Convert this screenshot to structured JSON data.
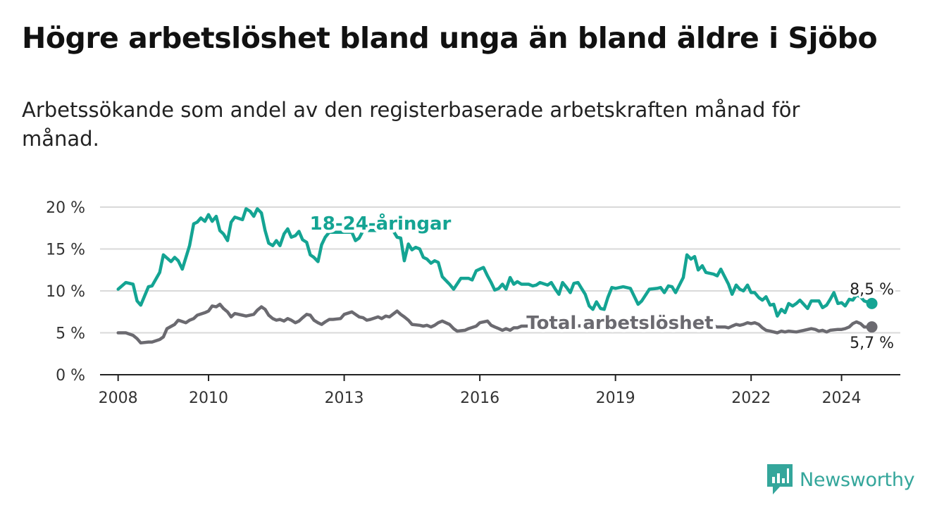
{
  "title": "Högre arbetslöshet bland unga än bland äldre i Sjöbo",
  "subtitle": "Arbetssökande som andel av den registerbaserade arbetskraften månad för månad.",
  "brand": {
    "name": "Newsworthy",
    "icon": "bar-chart-speech-icon",
    "color": "#34a69b"
  },
  "chart_data": {
    "type": "line",
    "ylim": [
      0,
      20
    ],
    "xlim": [
      2007.6,
      2025.3
    ],
    "y_ticks": [
      0,
      5,
      10,
      15,
      20
    ],
    "y_tick_labels": [
      "0 %",
      "5 %",
      "10 %",
      "15 %",
      "20 %"
    ],
    "x_ticks": [
      2008,
      2010,
      2013,
      2016,
      2019,
      2022,
      2024
    ],
    "x_tick_labels": [
      "2008",
      "2010",
      "2013",
      "2016",
      "2019",
      "2022",
      "2024"
    ],
    "grid": true,
    "series": [
      {
        "name": "18-24-åringar",
        "color": "#14a493",
        "end_label": "8,5 %",
        "points": [
          [
            2008.0,
            10.2
          ],
          [
            2008.17,
            11.0
          ],
          [
            2008.33,
            10.8
          ],
          [
            2008.42,
            8.8
          ],
          [
            2008.5,
            8.3
          ],
          [
            2008.67,
            10.5
          ],
          [
            2008.75,
            10.6
          ],
          [
            2008.92,
            12.2
          ],
          [
            2009.0,
            14.3
          ],
          [
            2009.17,
            13.5
          ],
          [
            2009.25,
            14.0
          ],
          [
            2009.33,
            13.6
          ],
          [
            2009.42,
            12.6
          ],
          [
            2009.58,
            15.4
          ],
          [
            2009.67,
            18.0
          ],
          [
            2009.75,
            18.2
          ],
          [
            2009.83,
            18.7
          ],
          [
            2009.92,
            18.3
          ],
          [
            2010.0,
            19.1
          ],
          [
            2010.08,
            18.3
          ],
          [
            2010.17,
            18.9
          ],
          [
            2010.25,
            17.2
          ],
          [
            2010.33,
            16.8
          ],
          [
            2010.42,
            16.0
          ],
          [
            2010.5,
            18.2
          ],
          [
            2010.58,
            18.8
          ],
          [
            2010.75,
            18.5
          ],
          [
            2010.83,
            19.8
          ],
          [
            2010.92,
            19.5
          ],
          [
            2011.0,
            18.9
          ],
          [
            2011.08,
            19.8
          ],
          [
            2011.17,
            19.3
          ],
          [
            2011.25,
            17.2
          ],
          [
            2011.33,
            15.7
          ],
          [
            2011.42,
            15.4
          ],
          [
            2011.5,
            16.0
          ],
          [
            2011.58,
            15.4
          ],
          [
            2011.67,
            16.8
          ],
          [
            2011.75,
            17.4
          ],
          [
            2011.83,
            16.4
          ],
          [
            2011.92,
            16.6
          ],
          [
            2012.0,
            17.1
          ],
          [
            2012.08,
            16.1
          ],
          [
            2012.17,
            15.8
          ],
          [
            2012.25,
            14.3
          ],
          [
            2012.33,
            14.0
          ],
          [
            2012.42,
            13.5
          ],
          [
            2012.5,
            15.5
          ],
          [
            2012.58,
            16.4
          ],
          [
            2012.67,
            17.0
          ],
          [
            2013.17,
            17.0
          ],
          [
            2013.25,
            16.0
          ],
          [
            2013.33,
            16.3
          ],
          [
            2013.42,
            17.2
          ],
          [
            2014.08,
            17.2
          ],
          [
            2014.17,
            16.4
          ],
          [
            2014.25,
            16.3
          ],
          [
            2014.33,
            13.6
          ],
          [
            2014.42,
            15.6
          ],
          [
            2014.5,
            14.9
          ],
          [
            2014.58,
            15.2
          ],
          [
            2014.67,
            15.0
          ],
          [
            2014.75,
            14.0
          ],
          [
            2014.83,
            13.8
          ],
          [
            2014.92,
            13.3
          ],
          [
            2015.0,
            13.6
          ],
          [
            2015.08,
            13.4
          ],
          [
            2015.17,
            11.7
          ],
          [
            2015.33,
            10.8
          ],
          [
            2015.42,
            10.2
          ],
          [
            2015.58,
            11.5
          ],
          [
            2015.75,
            11.5
          ],
          [
            2015.83,
            11.3
          ],
          [
            2015.92,
            12.4
          ],
          [
            2016.0,
            12.6
          ],
          [
            2016.08,
            12.8
          ],
          [
            2016.17,
            11.8
          ],
          [
            2016.25,
            11.0
          ],
          [
            2016.33,
            10.1
          ],
          [
            2016.42,
            10.3
          ],
          [
            2016.5,
            10.8
          ],
          [
            2016.58,
            10.2
          ],
          [
            2016.67,
            11.6
          ],
          [
            2016.75,
            10.8
          ],
          [
            2016.83,
            11.1
          ],
          [
            2016.92,
            10.8
          ],
          [
            2017.08,
            10.8
          ],
          [
            2017.17,
            10.6
          ],
          [
            2017.25,
            10.7
          ],
          [
            2017.33,
            11.0
          ],
          [
            2017.5,
            10.7
          ],
          [
            2017.58,
            11.0
          ],
          [
            2017.67,
            10.2
          ],
          [
            2017.75,
            9.6
          ],
          [
            2017.83,
            11.0
          ],
          [
            2017.92,
            10.4
          ],
          [
            2018.0,
            9.8
          ],
          [
            2018.08,
            10.9
          ],
          [
            2018.17,
            11.0
          ],
          [
            2018.25,
            10.3
          ],
          [
            2018.33,
            9.6
          ],
          [
            2018.42,
            8.2
          ],
          [
            2018.5,
            7.8
          ],
          [
            2018.58,
            8.7
          ],
          [
            2018.67,
            7.9
          ],
          [
            2018.75,
            7.8
          ],
          [
            2018.83,
            9.2
          ],
          [
            2018.92,
            10.4
          ],
          [
            2019.0,
            10.3
          ],
          [
            2019.17,
            10.5
          ],
          [
            2019.33,
            10.3
          ],
          [
            2019.42,
            9.3
          ],
          [
            2019.5,
            8.4
          ],
          [
            2019.58,
            8.8
          ],
          [
            2019.75,
            10.2
          ],
          [
            2019.92,
            10.3
          ],
          [
            2020.0,
            10.4
          ],
          [
            2020.08,
            9.8
          ],
          [
            2020.17,
            10.6
          ],
          [
            2020.25,
            10.5
          ],
          [
            2020.33,
            9.8
          ],
          [
            2020.5,
            11.6
          ],
          [
            2020.58,
            14.3
          ],
          [
            2020.67,
            13.8
          ],
          [
            2020.75,
            14.1
          ],
          [
            2020.83,
            12.5
          ],
          [
            2020.92,
            13.0
          ],
          [
            2021.0,
            12.2
          ],
          [
            2021.17,
            12.0
          ],
          [
            2021.25,
            11.8
          ],
          [
            2021.33,
            12.6
          ],
          [
            2021.5,
            10.8
          ],
          [
            2021.58,
            9.6
          ],
          [
            2021.67,
            10.7
          ],
          [
            2021.75,
            10.2
          ],
          [
            2021.83,
            10.0
          ],
          [
            2021.92,
            10.7
          ],
          [
            2022.0,
            9.8
          ],
          [
            2022.08,
            9.8
          ],
          [
            2022.17,
            9.2
          ],
          [
            2022.25,
            8.9
          ],
          [
            2022.33,
            9.3
          ],
          [
            2022.42,
            8.3
          ],
          [
            2022.5,
            8.4
          ],
          [
            2022.58,
            7.0
          ],
          [
            2022.67,
            7.8
          ],
          [
            2022.75,
            7.4
          ],
          [
            2022.83,
            8.5
          ],
          [
            2022.92,
            8.2
          ],
          [
            2023.0,
            8.5
          ],
          [
            2023.08,
            8.9
          ],
          [
            2023.25,
            7.9
          ],
          [
            2023.33,
            8.8
          ],
          [
            2023.5,
            8.8
          ],
          [
            2023.58,
            8.0
          ],
          [
            2023.67,
            8.3
          ],
          [
            2023.75,
            9.0
          ],
          [
            2023.83,
            9.8
          ],
          [
            2023.92,
            8.5
          ],
          [
            2024.0,
            8.6
          ],
          [
            2024.08,
            8.2
          ],
          [
            2024.17,
            9.0
          ],
          [
            2024.25,
            8.9
          ],
          [
            2024.33,
            9.5
          ],
          [
            2024.42,
            9.3
          ],
          [
            2024.5,
            8.8
          ],
          [
            2024.67,
            8.5
          ]
        ]
      },
      {
        "name": "Total arbetslöshet",
        "color": "#6b6a70",
        "end_label": "5,7 %",
        "points": [
          [
            2008.0,
            5.0
          ],
          [
            2008.17,
            5.0
          ],
          [
            2008.33,
            4.7
          ],
          [
            2008.42,
            4.3
          ],
          [
            2008.5,
            3.8
          ],
          [
            2008.67,
            3.9
          ],
          [
            2008.75,
            3.9
          ],
          [
            2008.92,
            4.2
          ],
          [
            2009.0,
            4.5
          ],
          [
            2009.08,
            5.5
          ],
          [
            2009.25,
            6.0
          ],
          [
            2009.33,
            6.5
          ],
          [
            2009.5,
            6.2
          ],
          [
            2009.58,
            6.5
          ],
          [
            2009.67,
            6.7
          ],
          [
            2009.75,
            7.1
          ],
          [
            2009.92,
            7.4
          ],
          [
            2010.0,
            7.6
          ],
          [
            2010.08,
            8.2
          ],
          [
            2010.17,
            8.1
          ],
          [
            2010.25,
            8.4
          ],
          [
            2010.33,
            7.9
          ],
          [
            2010.42,
            7.5
          ],
          [
            2010.5,
            6.9
          ],
          [
            2010.58,
            7.3
          ],
          [
            2010.75,
            7.1
          ],
          [
            2010.83,
            7.0
          ],
          [
            2011.0,
            7.2
          ],
          [
            2011.08,
            7.7
          ],
          [
            2011.17,
            8.1
          ],
          [
            2011.25,
            7.8
          ],
          [
            2011.33,
            7.1
          ],
          [
            2011.42,
            6.7
          ],
          [
            2011.5,
            6.5
          ],
          [
            2011.58,
            6.6
          ],
          [
            2011.67,
            6.4
          ],
          [
            2011.75,
            6.7
          ],
          [
            2011.83,
            6.5
          ],
          [
            2011.92,
            6.2
          ],
          [
            2012.0,
            6.4
          ],
          [
            2012.08,
            6.8
          ],
          [
            2012.17,
            7.2
          ],
          [
            2012.25,
            7.1
          ],
          [
            2012.33,
            6.5
          ],
          [
            2012.42,
            6.2
          ],
          [
            2012.5,
            6.0
          ],
          [
            2012.58,
            6.3
          ],
          [
            2012.67,
            6.6
          ],
          [
            2012.75,
            6.6
          ],
          [
            2012.92,
            6.7
          ],
          [
            2013.0,
            7.2
          ],
          [
            2013.17,
            7.5
          ],
          [
            2013.25,
            7.2
          ],
          [
            2013.33,
            6.9
          ],
          [
            2013.42,
            6.8
          ],
          [
            2013.5,
            6.5
          ],
          [
            2013.58,
            6.6
          ],
          [
            2013.75,
            6.9
          ],
          [
            2013.83,
            6.7
          ],
          [
            2013.92,
            7.0
          ],
          [
            2014.0,
            6.9
          ],
          [
            2014.17,
            7.6
          ],
          [
            2014.25,
            7.2
          ],
          [
            2014.33,
            6.9
          ],
          [
            2014.42,
            6.5
          ],
          [
            2014.5,
            6.0
          ],
          [
            2014.67,
            5.9
          ],
          [
            2014.75,
            5.8
          ],
          [
            2014.83,
            5.9
          ],
          [
            2014.92,
            5.7
          ],
          [
            2015.0,
            5.9
          ],
          [
            2015.08,
            6.2
          ],
          [
            2015.17,
            6.4
          ],
          [
            2015.33,
            6.0
          ],
          [
            2015.42,
            5.5
          ],
          [
            2015.5,
            5.2
          ],
          [
            2015.67,
            5.3
          ],
          [
            2015.75,
            5.5
          ],
          [
            2015.92,
            5.8
          ],
          [
            2016.0,
            6.2
          ],
          [
            2016.17,
            6.4
          ],
          [
            2016.25,
            5.9
          ],
          [
            2016.33,
            5.7
          ],
          [
            2016.42,
            5.5
          ],
          [
            2016.5,
            5.3
          ],
          [
            2016.58,
            5.5
          ],
          [
            2016.67,
            5.3
          ],
          [
            2016.75,
            5.6
          ],
          [
            2016.83,
            5.6
          ],
          [
            2016.92,
            5.8
          ],
          [
            2021.0,
            5.9
          ],
          [
            2021.08,
            6.0
          ],
          [
            2021.17,
            5.8
          ],
          [
            2021.25,
            5.7
          ],
          [
            2021.42,
            5.7
          ],
          [
            2021.5,
            5.6
          ],
          [
            2021.58,
            5.8
          ],
          [
            2021.67,
            6.0
          ],
          [
            2021.75,
            5.9
          ],
          [
            2021.83,
            6.0
          ],
          [
            2021.92,
            6.2
          ],
          [
            2022.0,
            6.1
          ],
          [
            2022.08,
            6.2
          ],
          [
            2022.17,
            6.0
          ],
          [
            2022.25,
            5.6
          ],
          [
            2022.33,
            5.3
          ],
          [
            2022.42,
            5.2
          ],
          [
            2022.58,
            5.0
          ],
          [
            2022.67,
            5.2
          ],
          [
            2022.75,
            5.1
          ],
          [
            2022.83,
            5.2
          ],
          [
            2023.0,
            5.1
          ],
          [
            2023.17,
            5.3
          ],
          [
            2023.33,
            5.5
          ],
          [
            2023.42,
            5.4
          ],
          [
            2023.5,
            5.2
          ],
          [
            2023.58,
            5.3
          ],
          [
            2023.67,
            5.1
          ],
          [
            2023.75,
            5.3
          ],
          [
            2023.92,
            5.4
          ],
          [
            2024.0,
            5.4
          ],
          [
            2024.08,
            5.5
          ],
          [
            2024.17,
            5.7
          ],
          [
            2024.25,
            6.1
          ],
          [
            2024.33,
            6.3
          ],
          [
            2024.42,
            6.1
          ],
          [
            2024.5,
            5.7
          ],
          [
            2024.67,
            5.7
          ]
        ]
      }
    ]
  }
}
